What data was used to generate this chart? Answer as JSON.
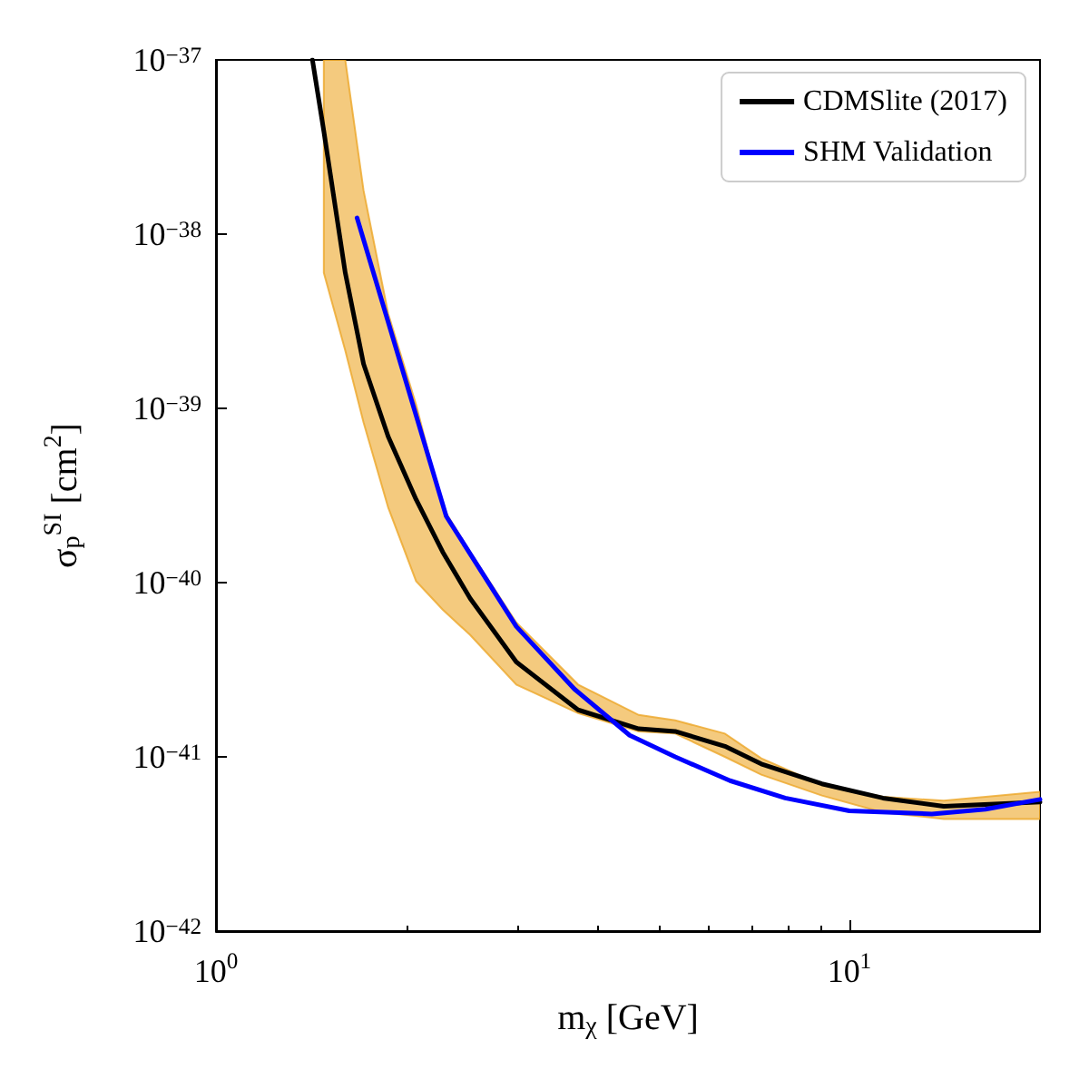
{
  "chart_data": {
    "type": "line",
    "xlabel": "m$_{χ}$ [GeV]",
    "ylabel": "σ$_{p}$$^{SI}$ [cm$^{2}$]",
    "log": "xy",
    "grid": false,
    "legend": "top right",
    "marker": "none",
    "line_style": "solid",
    "xlim": [
      1,
      20
    ],
    "ylim": [
      1e-42,
      1e-37
    ],
    "xticks": [
      {
        "value": 1,
        "label": "10$^{0}$"
      },
      {
        "value": 10,
        "label": "10$^{1}$"
      }
    ],
    "yticks": [
      {
        "value": 1e-42,
        "label": "10$^{−42}$"
      },
      {
        "value": 1e-41,
        "label": "10$^{−41}$"
      },
      {
        "value": 1e-40,
        "label": "10$^{−40}$"
      },
      {
        "value": 1e-39,
        "label": "10$^{−39}$"
      },
      {
        "value": 1e-38,
        "label": "10$^{−38}$"
      },
      {
        "value": 1e-37,
        "label": "10$^{−37}$"
      }
    ],
    "series": [
      {
        "name": "CDMSlite (2017)",
        "color": "#000000",
        "x": [
          1.42,
          1.48,
          1.6,
          1.71,
          1.87,
          2.07,
          2.28,
          2.52,
          2.98,
          3.73,
          4.65,
          5.31,
          6.36,
          7.26,
          9.05,
          11.3,
          14.1,
          20
        ],
        "values": [
          1e-37,
          3.9e-38,
          6e-39,
          1.8e-39,
          6.9e-40,
          3e-40,
          1.5e-40,
          8.1e-41,
          3.5e-41,
          1.86e-41,
          1.45e-41,
          1.4e-41,
          1.15e-41,
          9.1e-42,
          7e-42,
          5.8e-42,
          5.2e-42,
          5.5e-42
        ],
        "upper": [
          null,
          1e-37,
          1e-37,
          1.78e-38,
          3.5e-39,
          1.05e-39,
          2.7e-40,
          1.5e-40,
          5.9e-41,
          2.6e-41,
          1.74e-41,
          1.62e-41,
          1.36e-41,
          9.8e-42,
          6.9e-42,
          5.9e-42,
          5.6e-42,
          6.3e-42
        ],
        "lower": [
          null,
          6e-39,
          2.15e-39,
          8.3e-40,
          2.7e-40,
          1.02e-40,
          7e-41,
          5e-41,
          2.6e-41,
          1.78e-41,
          1.4e-41,
          1.36e-41,
          1e-41,
          7.9e-42,
          6e-42,
          4.8e-42,
          4.4e-42,
          4.4e-42
        ]
      },
      {
        "name": "SHM Validation",
        "color": "#0000ff",
        "x": [
          1.67,
          2.31,
          2.98,
          3.68,
          4.5,
          5.31,
          6.48,
          7.92,
          10,
          13.5,
          16.4,
          20
        ],
        "values": [
          1.24e-38,
          2.4e-40,
          5.6e-41,
          2.45e-41,
          1.33e-41,
          1e-41,
          7.3e-42,
          5.8e-42,
          4.9e-42,
          4.7e-42,
          5e-42,
          5.7e-42
        ]
      }
    ]
  }
}
